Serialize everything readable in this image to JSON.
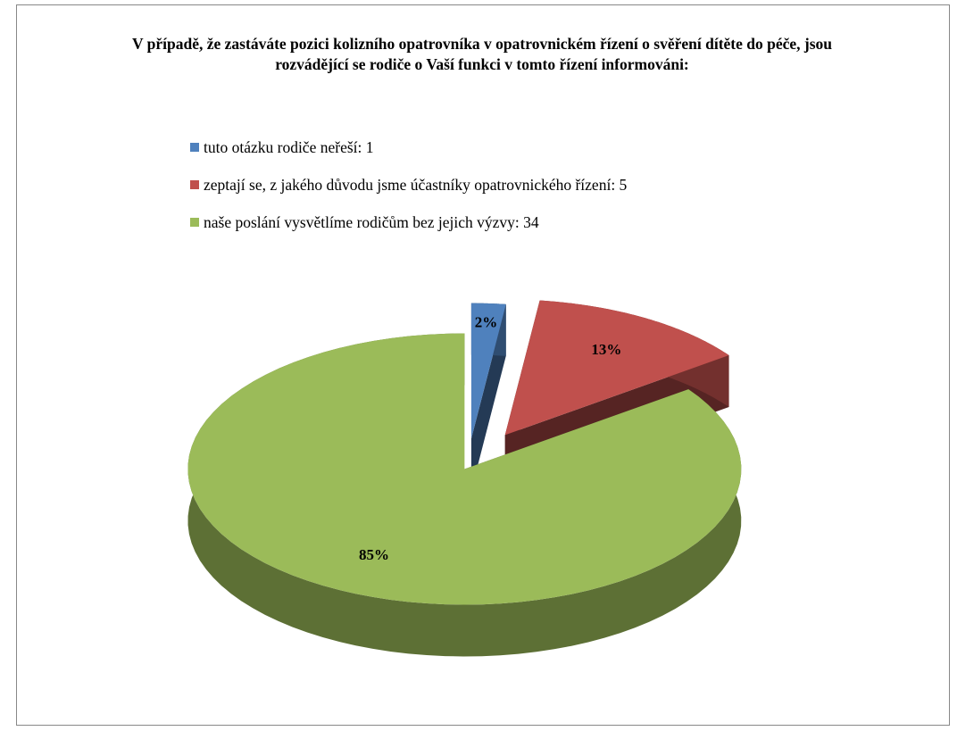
{
  "chart_data": {
    "type": "pie",
    "title": "V případě, že zastáváte pozici kolizního opatrovníka v opatrovnickém řízení o svěření dítěte do péče, jsou rozvádějící se rodiče o Vaší funkci v tomto řízení informováni:",
    "categories": [
      "tuto otázku rodiče neřeší: 1",
      "zeptají se, z jakého důvodu jsme účastníky opatrovnického řízení: 5",
      "naše poslání vysvětlíme rodičům bez jejich výzvy: 34"
    ],
    "values": [
      2,
      13,
      85
    ],
    "value_labels": [
      "2%",
      "13%",
      "85%"
    ],
    "colors": [
      "#4f81bd",
      "#c0504d",
      "#9bbb59"
    ],
    "legend": "top"
  }
}
